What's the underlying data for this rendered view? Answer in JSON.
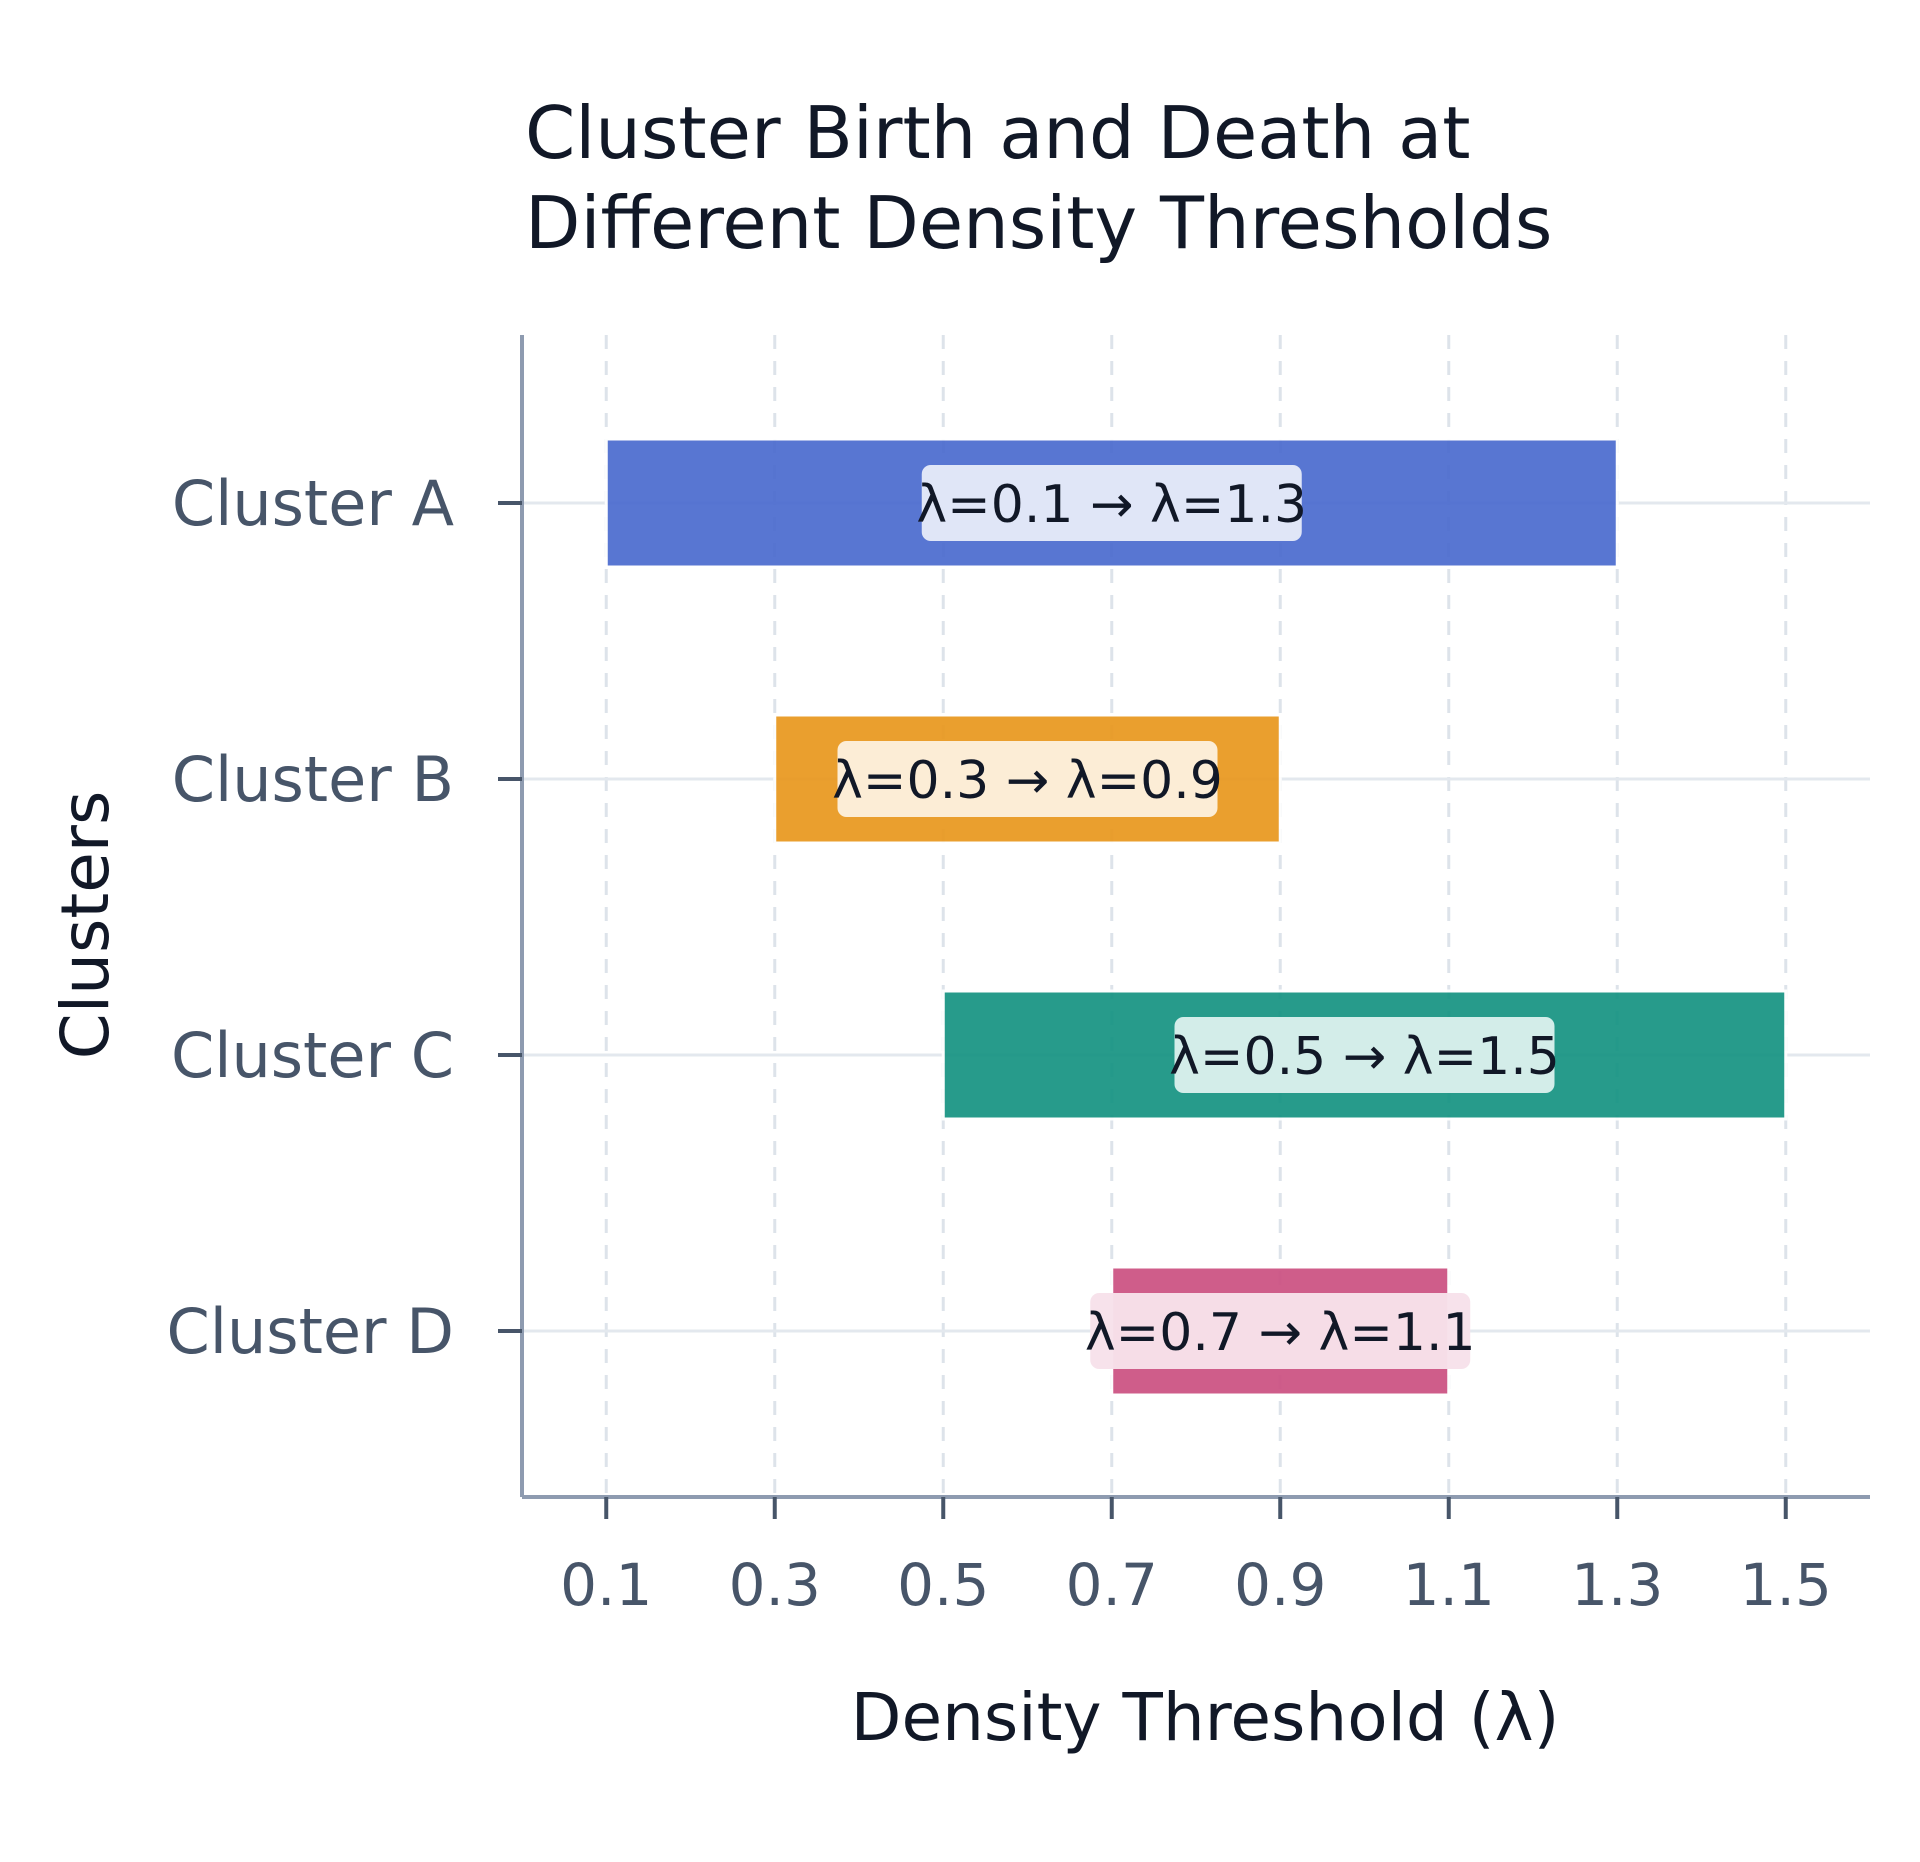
{
  "chart_data": {
    "type": "bar",
    "orientation": "horizontal",
    "title": "Cluster Birth and Death at Different Density Thresholds",
    "title_lines": [
      "Cluster Birth and Death at",
      "Different Density Thresholds"
    ],
    "xlabel": "Density Threshold (λ)",
    "ylabel": "Clusters",
    "xlim": [
      0.0,
      1.6
    ],
    "xticks": [
      0.1,
      0.3,
      0.5,
      0.7,
      0.9,
      1.1,
      1.3,
      1.5
    ],
    "xtick_labels": [
      "0.1",
      "0.3",
      "0.5",
      "0.7",
      "0.9",
      "1.1",
      "1.3",
      "1.5"
    ],
    "grid": true,
    "bars": [
      {
        "category": "Cluster A",
        "start": 0.1,
        "end": 1.3,
        "label": "λ=0.1 → λ=1.3",
        "color": "#4c6ccf",
        "label_bg": "#e4e9f8"
      },
      {
        "category": "Cluster B",
        "start": 0.3,
        "end": 0.9,
        "label": "λ=0.3 → λ=0.9",
        "color": "#e9981f",
        "label_bg": "#fcefdc"
      },
      {
        "category": "Cluster C",
        "start": 0.5,
        "end": 1.5,
        "label": "λ=0.5 → λ=1.5",
        "color": "#179483",
        "label_bg": "#d9efec"
      },
      {
        "category": "Cluster D",
        "start": 0.7,
        "end": 1.1,
        "label": "λ=0.7 → λ=1.1",
        "color": "#cc5182",
        "label_bg": "#f7e1ea"
      }
    ]
  }
}
